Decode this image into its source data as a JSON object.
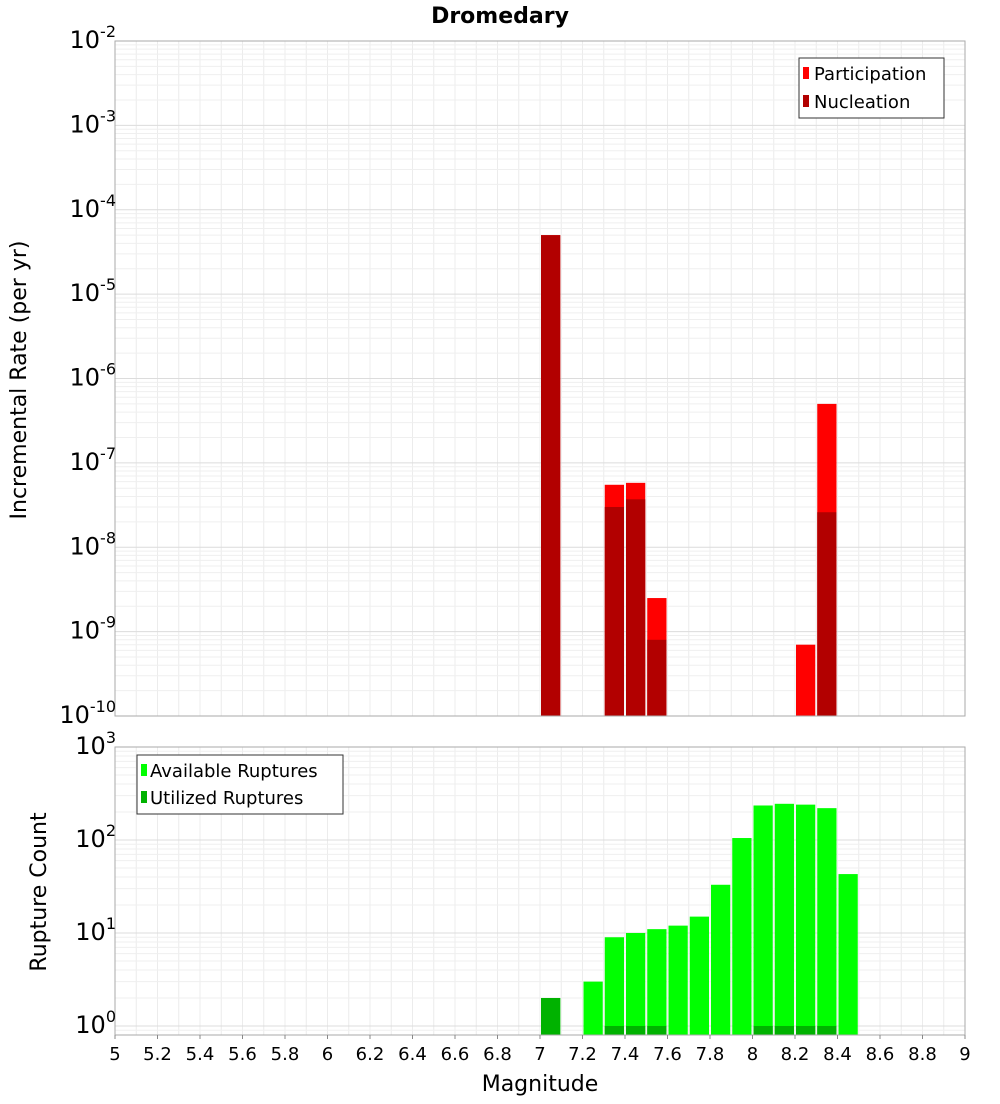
{
  "chart_data": [
    {
      "type": "bar",
      "panel": "top",
      "title": "Dromedary",
      "ylabel": "Incremental Rate (per yr)",
      "yscale": "log",
      "ylim": [
        1e-10,
        0.01
      ],
      "ytick_exponents": [
        "-2",
        "-3",
        "-4",
        "-5",
        "-6",
        "-7",
        "-8",
        "-9",
        "-10"
      ],
      "ytick_base": "10",
      "bar_width": 0.1,
      "grid": true,
      "legend_position": "top-right",
      "series": [
        {
          "name": "Participation",
          "color": "#ff0000",
          "points": [
            {
              "x": 7.05,
              "y": 5e-05
            },
            {
              "x": 7.35,
              "y": 5.5e-08
            },
            {
              "x": 7.45,
              "y": 5.8e-08
            },
            {
              "x": 7.55,
              "y": 2.5e-09
            },
            {
              "x": 8.25,
              "y": 7e-10
            },
            {
              "x": 8.35,
              "y": 5e-07
            }
          ]
        },
        {
          "name": "Nucleation",
          "color": "#b20000",
          "points": [
            {
              "x": 7.05,
              "y": 5e-05
            },
            {
              "x": 7.35,
              "y": 3e-08
            },
            {
              "x": 7.45,
              "y": 3.7e-08
            },
            {
              "x": 7.55,
              "y": 8e-10
            },
            {
              "x": 8.35,
              "y": 2.6e-08
            }
          ]
        }
      ]
    },
    {
      "type": "bar",
      "panel": "bottom",
      "xlabel": "Magnitude",
      "ylabel": "Rupture Count",
      "yscale": "log",
      "ylim": [
        0.8,
        1000
      ],
      "ytick_exponents": [
        "3",
        "2",
        "1",
        "0"
      ],
      "ytick_base": "10",
      "xlim": [
        5,
        9
      ],
      "xticks": [
        "5",
        "5.2",
        "5.4",
        "5.6",
        "5.8",
        "6",
        "6.2",
        "6.4",
        "6.6",
        "6.8",
        "7",
        "7.2",
        "7.4",
        "7.6",
        "7.8",
        "8",
        "8.2",
        "8.4",
        "8.6",
        "8.8",
        "9"
      ],
      "bar_width": 0.1,
      "grid": true,
      "legend_position": "top-left",
      "series": [
        {
          "name": "Available Ruptures",
          "color": "#00ff00",
          "points": [
            {
              "x": 7.05,
              "y": 2
            },
            {
              "x": 7.25,
              "y": 3
            },
            {
              "x": 7.35,
              "y": 9
            },
            {
              "x": 7.45,
              "y": 10
            },
            {
              "x": 7.55,
              "y": 11
            },
            {
              "x": 7.65,
              "y": 12
            },
            {
              "x": 7.75,
              "y": 15
            },
            {
              "x": 7.85,
              "y": 33
            },
            {
              "x": 7.95,
              "y": 105
            },
            {
              "x": 8.05,
              "y": 235
            },
            {
              "x": 8.15,
              "y": 245
            },
            {
              "x": 8.25,
              "y": 240
            },
            {
              "x": 8.35,
              "y": 220
            },
            {
              "x": 8.45,
              "y": 43
            }
          ]
        },
        {
          "name": "Utilized Ruptures",
          "color": "#00b200",
          "points": [
            {
              "x": 7.05,
              "y": 2
            },
            {
              "x": 7.35,
              "y": 1
            },
            {
              "x": 7.45,
              "y": 1
            },
            {
              "x": 7.55,
              "y": 1
            },
            {
              "x": 8.05,
              "y": 1
            },
            {
              "x": 8.15,
              "y": 1
            },
            {
              "x": 8.25,
              "y": 1
            },
            {
              "x": 8.35,
              "y": 1
            }
          ]
        }
      ]
    }
  ]
}
